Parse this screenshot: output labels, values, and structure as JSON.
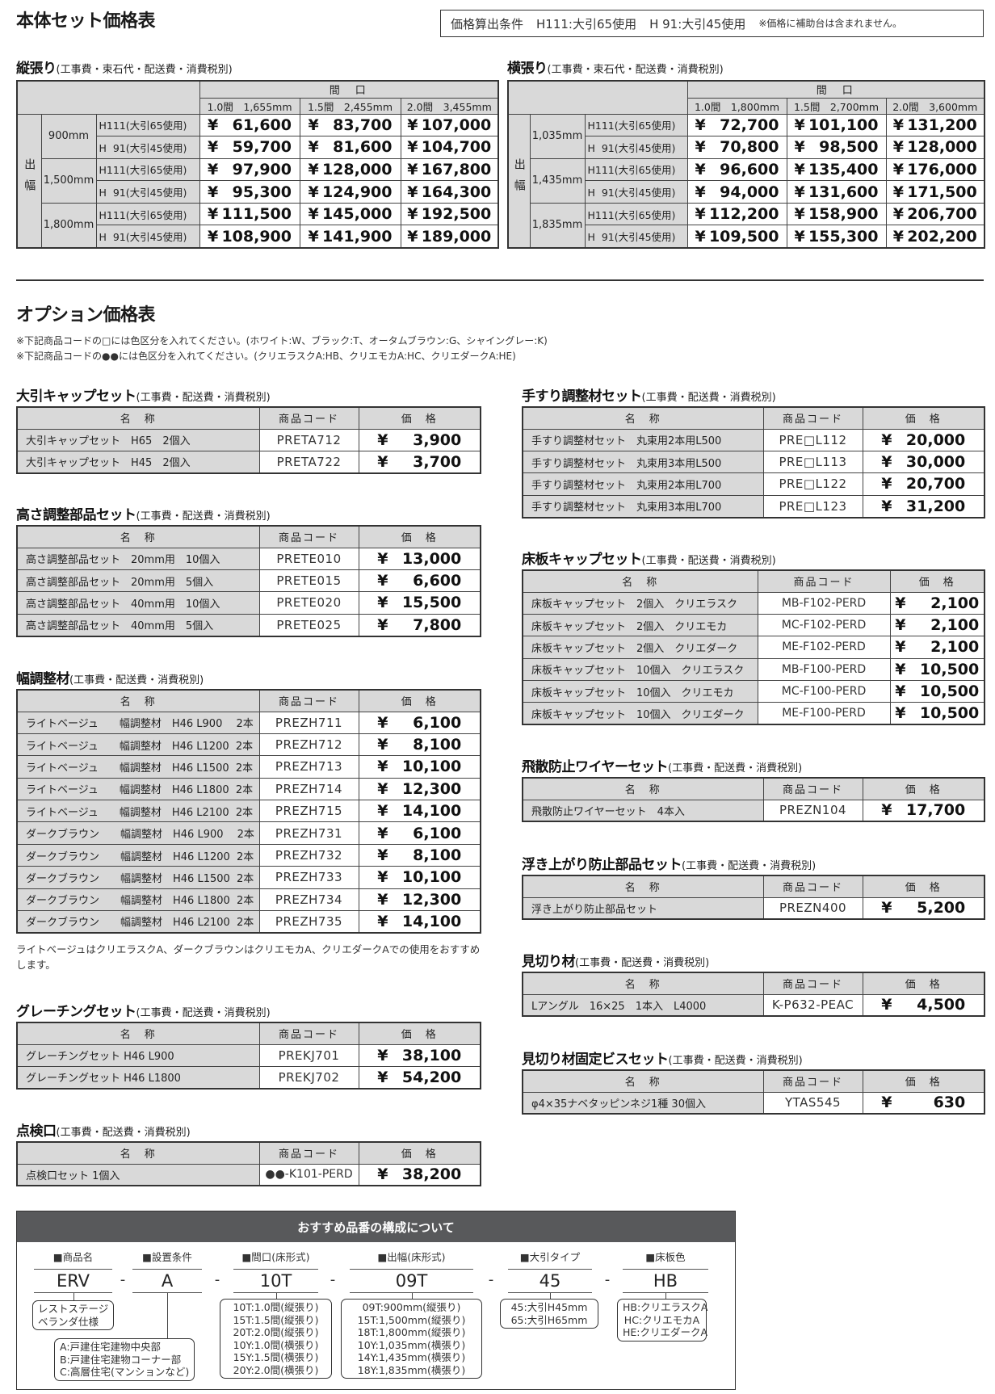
{
  "page": {
    "title": "本体セット価格表",
    "conditions": {
      "label": "価格算出条件",
      "h111": "H111:大引65使用",
      "h91": "H 91:大引45使用",
      "note": "※価格に補助台は含まれません。"
    }
  },
  "currency": "¥",
  "main_tables": [
    {
      "title": "縦張り",
      "subtitle": "(工事費・束石代・配送費・消費税別)",
      "header_group": "間　口",
      "col_headers": [
        "1.0間　1,655mm",
        "1.5間　2,455mm",
        "2.0間　3,455mm"
      ],
      "row_group": "出幅",
      "groups": [
        {
          "size": "900mm",
          "rows": [
            {
              "type": "H111(大引65使用)",
              "prices": [
                "61,600",
                "83,700",
                "107,000"
              ]
            },
            {
              "type": "H  91(大引45使用)",
              "prices": [
                "59,700",
                "81,600",
                "104,700"
              ]
            }
          ]
        },
        {
          "size": "1,500mm",
          "rows": [
            {
              "type": "H111(大引65使用)",
              "prices": [
                "97,900",
                "128,000",
                "167,800"
              ]
            },
            {
              "type": "H  91(大引45使用)",
              "prices": [
                "95,300",
                "124,900",
                "164,300"
              ]
            }
          ]
        },
        {
          "size": "1,800mm",
          "rows": [
            {
              "type": "H111(大引65使用)",
              "prices": [
                "111,500",
                "145,000",
                "192,500"
              ]
            },
            {
              "type": "H  91(大引45使用)",
              "prices": [
                "108,900",
                "141,900",
                "189,000"
              ]
            }
          ]
        }
      ]
    },
    {
      "title": "横張り",
      "subtitle": "(工事費・束石代・配送費・消費税別)",
      "header_group": "間　口",
      "col_headers": [
        "1.0間　1,800mm",
        "1.5間　2,700mm",
        "2.0間　3,600mm"
      ],
      "row_group": "出幅",
      "groups": [
        {
          "size": "1,035mm",
          "rows": [
            {
              "type": "H111(大引65使用)",
              "prices": [
                "72,700",
                "101,100",
                "131,200"
              ]
            },
            {
              "type": "H  91(大引45使用)",
              "prices": [
                "70,800",
                "98,500",
                "128,000"
              ]
            }
          ]
        },
        {
          "size": "1,435mm",
          "rows": [
            {
              "type": "H111(大引65使用)",
              "prices": [
                "96,600",
                "135,400",
                "176,000"
              ]
            },
            {
              "type": "H  91(大引45使用)",
              "prices": [
                "94,000",
                "131,600",
                "171,500"
              ]
            }
          ]
        },
        {
          "size": "1,835mm",
          "rows": [
            {
              "type": "H111(大引65使用)",
              "prices": [
                "112,200",
                "158,900",
                "206,700"
              ]
            },
            {
              "type": "H  91(大引45使用)",
              "prices": [
                "109,500",
                "155,300",
                "202,200"
              ]
            }
          ]
        }
      ]
    }
  ],
  "options": {
    "title": "オプション価格表",
    "notes": [
      "※下記商品コードの□には色区分を入れてください。(ホワイト:W、ブラック:T、オータムブラウン:G、シャイングレー:K)",
      "※下記商品コードの●●には色区分を入れてください。(クリエラスクA:HB、クリエモカA:HC、クリエダークA:HE)"
    ],
    "columns": [
      "名　称",
      "商品コード",
      "価　格"
    ],
    "left": [
      {
        "title": "大引キャップセット",
        "subtitle": "(工事費・配送費・消費税別)",
        "rows": [
          {
            "name": "大引キャップセット　H65　2個入",
            "code": "PRETA712",
            "price": "3,900"
          },
          {
            "name": "大引キャップセット　H45　2個入",
            "code": "PRETA722",
            "price": "3,700"
          }
        ]
      },
      {
        "title": "高さ調整部品セット",
        "subtitle": "(工事費・配送費・消費税別)",
        "rows": [
          {
            "name": "高さ調整部品セット　20mm用　10個入",
            "code": "PRETE010",
            "price": "13,000"
          },
          {
            "name": "高さ調整部品セット　20mm用　5個入",
            "code": "PRETE015",
            "price": "6,600"
          },
          {
            "name": "高さ調整部品セット　40mm用　10個入",
            "code": "PRETE020",
            "price": "15,500"
          },
          {
            "name": "高さ調整部品セット　40mm用　5個入",
            "code": "PRETE025",
            "price": "7,800"
          }
        ]
      },
      {
        "title": "幅調整材",
        "subtitle": "(工事費・配送費・消費税別)",
        "rows": [
          {
            "name": "ライトベージュ　　幅調整材　H46 L900　 2本",
            "code": "PREZH711",
            "price": "6,100"
          },
          {
            "name": "ライトベージュ　　幅調整材　H46 L1200  2本",
            "code": "PREZH712",
            "price": "8,100"
          },
          {
            "name": "ライトベージュ　　幅調整材　H46 L1500  2本",
            "code": "PREZH713",
            "price": "10,100"
          },
          {
            "name": "ライトベージュ　　幅調整材　H46 L1800  2本",
            "code": "PREZH714",
            "price": "12,300"
          },
          {
            "name": "ライトベージュ　　幅調整材　H46 L2100  2本",
            "code": "PREZH715",
            "price": "14,100"
          },
          {
            "name": "ダークブラウン　　幅調整材　H46 L900　 2本",
            "code": "PREZH731",
            "price": "6,100"
          },
          {
            "name": "ダークブラウン　　幅調整材　H46 L1200  2本",
            "code": "PREZH732",
            "price": "8,100"
          },
          {
            "name": "ダークブラウン　　幅調整材　H46 L1500  2本",
            "code": "PREZH733",
            "price": "10,100"
          },
          {
            "name": "ダークブラウン　　幅調整材　H46 L1800  2本",
            "code": "PREZH734",
            "price": "12,300"
          },
          {
            "name": "ダークブラウン　　幅調整材　H46 L2100  2本",
            "code": "PREZH735",
            "price": "14,100"
          }
        ]
      },
      {
        "title": "グレーチングセット",
        "subtitle": "(工事費・配送費・消費税別)",
        "rows": [
          {
            "name": "グレーチングセット H46 L900",
            "code": "PREKJ701",
            "price": "38,100"
          },
          {
            "name": "グレーチングセット H46 L1800",
            "code": "PREKJ702",
            "price": "54,200"
          }
        ]
      },
      {
        "title": "点検口",
        "subtitle": "(工事費・配送費・消費税別)",
        "rows": [
          {
            "name": "点検口セット 1個入",
            "code": "●●-K101-PERD",
            "price": "38,200"
          }
        ]
      }
    ],
    "width_note": "ライトベージュはクリエラスクA、ダークブラウンはクリエモカA、クリエダークAでの使用をおすすめします。",
    "right": [
      {
        "title": "手すり調整材セット",
        "subtitle": "(工事費・配送費・消費税別)",
        "rows": [
          {
            "name": "手すり調整材セット　丸束用2本用L500",
            "code": "PRE□L112",
            "price": "20,000"
          },
          {
            "name": "手すり調整材セット　丸束用3本用L500",
            "code": "PRE□L113",
            "price": "30,000"
          },
          {
            "name": "手すり調整材セット　丸束用2本用L700",
            "code": "PRE□L122",
            "price": "20,700"
          },
          {
            "name": "手すり調整材セット　丸束用3本用L700",
            "code": "PRE□L123",
            "price": "31,200"
          }
        ]
      },
      {
        "title": "床板キャップセット",
        "subtitle": "(工事費・配送費・消費税別)",
        "rows": [
          {
            "name": "床板キャップセット　2個入　クリエラスク",
            "code": "MB-F102-PERD",
            "price": "2,100"
          },
          {
            "name": "床板キャップセット　2個入　クリエモカ",
            "code": "MC-F102-PERD",
            "price": "2,100"
          },
          {
            "name": "床板キャップセット　2個入　クリエダーク",
            "code": "ME-F102-PERD",
            "price": "2,100"
          },
          {
            "name": "床板キャップセット　10個入　クリエラスク",
            "code": "MB-F100-PERD",
            "price": "10,500"
          },
          {
            "name": "床板キャップセット　10個入　クリエモカ",
            "code": "MC-F100-PERD",
            "price": "10,500"
          },
          {
            "name": "床板キャップセット　10個入　クリエダーク",
            "code": "ME-F100-PERD",
            "price": "10,500"
          }
        ]
      },
      {
        "title": "飛散防止ワイヤーセット",
        "subtitle": "(工事費・配送費・消費税別)",
        "rows": [
          {
            "name": "飛散防止ワイヤーセット　4本入",
            "code": "PREZN104",
            "price": "17,700"
          }
        ]
      },
      {
        "title": "浮き上がり防止部品セット",
        "subtitle": "(工事費・配送費・消費税別)",
        "rows": [
          {
            "name": "浮き上がり防止部品セット",
            "code": "PREZN400",
            "price": "5,200"
          }
        ]
      },
      {
        "title": "見切り材",
        "subtitle": "(工事費・配送費・消費税別)",
        "rows": [
          {
            "name": "Lアングル　16×25　1本入　L4000",
            "code": "K-P632-PEAC",
            "price": "4,500"
          }
        ]
      },
      {
        "title": "見切り材固定ビスセット",
        "subtitle": "(工事費・配送費・消費税別)",
        "rows": [
          {
            "name": "φ4×35ナベタッピンネジ1種 30個入",
            "code": "YTAS545",
            "price": "630"
          }
        ]
      }
    ]
  },
  "configurator": {
    "title": "おすすめ品番の構成について",
    "separator": "-",
    "segments": [
      {
        "label": "■商品名",
        "code": "ERV",
        "options": [
          "レストステージ",
          "ベランダ仕様"
        ]
      },
      {
        "label": "■設置条件",
        "code": "A",
        "options": [
          "A:戸建住宅建物中央部",
          "B:戸建住宅建物コーナー部",
          "C:高層住宅(マンションなど)"
        ]
      },
      {
        "label": "■間口(床形式)",
        "code": "10T",
        "options": [
          "10T:1.0間(縦張り)",
          "15T:1.5間(縦張り)",
          "20T:2.0間(縦張り)",
          "10Y:1.0間(横張り)",
          "15Y:1.5間(横張り)",
          "20Y:2.0間(横張り)"
        ]
      },
      {
        "label": "■出幅(床形式)",
        "code": "09T",
        "options": [
          "09T:900mm(縦張り)",
          "15T:1,500mm(縦張り)",
          "18T:1,800mm(縦張り)",
          "10Y:1,035mm(横張り)",
          "14Y:1,435mm(横張り)",
          "18Y:1,835mm(横張り)"
        ]
      },
      {
        "label": "■大引タイプ",
        "code": "45",
        "options": [
          "45:大引H45mm",
          "65:大引H65mm"
        ]
      },
      {
        "label": "■床板色",
        "code": "HB",
        "options": [
          "HB:クリエラスクA",
          "HC:クリエモカA",
          "HE:クリエダークA"
        ]
      }
    ]
  }
}
